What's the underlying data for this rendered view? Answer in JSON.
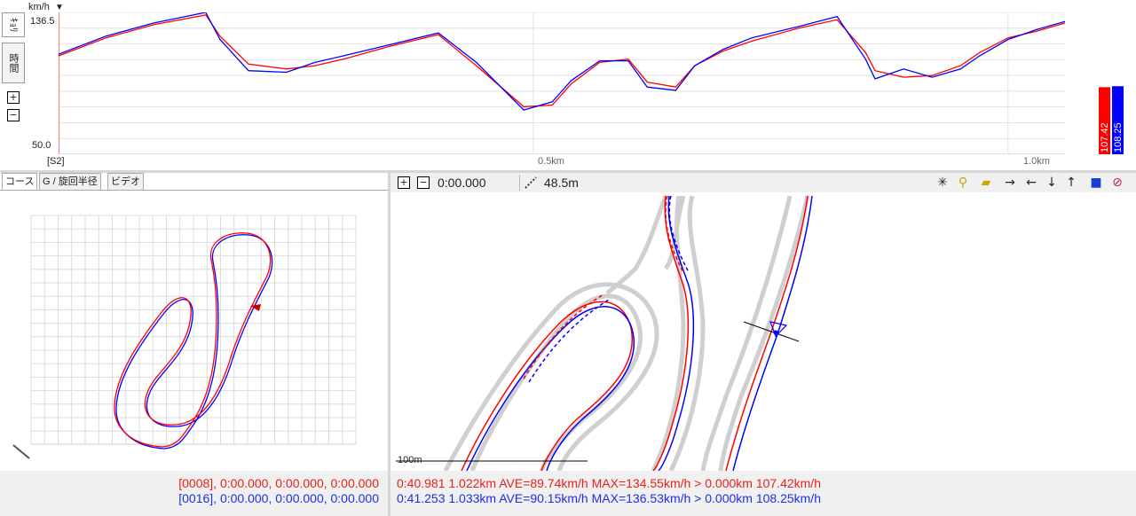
{
  "speed_chart": {
    "unit": "km/h",
    "y_max_label": "136.5",
    "y_min_label": "50.0",
    "start_label": "[S2]",
    "x_tick_labels": [
      "0.5km",
      "1.0km"
    ],
    "tab_labels": [
      "ｷｮﾘ",
      "時間"
    ],
    "zoom_in_symbol": "+",
    "zoom_out_symbol": "−",
    "bars": [
      {
        "label": "107.42",
        "value": 107.42,
        "color": "#ff0000"
      },
      {
        "label": "108.25",
        "value": 108.25,
        "color": "#0000ff"
      }
    ]
  },
  "chart_data": {
    "type": "line",
    "xlabel": "",
    "ylabel": "km/h",
    "x_range": [
      0,
      1.06
    ],
    "ylim": [
      50.0,
      136.5
    ],
    "grid": true,
    "series": [
      {
        "color": "#ff0000",
        "x": [
          0,
          0.05,
          0.1,
          0.155,
          0.17,
          0.2,
          0.24,
          0.27,
          0.3,
          0.35,
          0.4,
          0.44,
          0.49,
          0.52,
          0.54,
          0.57,
          0.6,
          0.62,
          0.65,
          0.67,
          0.7,
          0.73,
          0.78,
          0.82,
          0.85,
          0.86,
          0.89,
          0.92,
          0.95,
          0.97,
          1.0,
          1.03,
          1.06
        ],
        "y": [
          110,
          121,
          129,
          135,
          122,
          105,
          102,
          104,
          108,
          116,
          123,
          104,
          79,
          80,
          93,
          106,
          108,
          94,
          91,
          104,
          113,
          119,
          127,
          132,
          112,
          101,
          97,
          98,
          104,
          112,
          121,
          125,
          130
        ]
      },
      {
        "color": "#0000ff",
        "x": [
          0,
          0.05,
          0.1,
          0.155,
          0.17,
          0.2,
          0.24,
          0.27,
          0.3,
          0.35,
          0.4,
          0.44,
          0.49,
          0.52,
          0.54,
          0.57,
          0.6,
          0.62,
          0.65,
          0.67,
          0.7,
          0.73,
          0.78,
          0.82,
          0.85,
          0.86,
          0.89,
          0.92,
          0.95,
          0.97,
          1.0,
          1.03,
          1.06
        ],
        "y": [
          111,
          122,
          130,
          137,
          120,
          101,
          100,
          106,
          110,
          117,
          124,
          106,
          77,
          82,
          95,
          107,
          107,
          91,
          89,
          104,
          114,
          121,
          128,
          134,
          108,
          96,
          102,
          97,
          102,
          110,
          120,
          126,
          131
        ]
      }
    ]
  },
  "left_panel": {
    "tabs": [
      "コース",
      "G / 旋回半径",
      "ビデオ"
    ],
    "status_lines": [
      {
        "text": "[0008], 0:00.000, 0:00.000, 0:00.000",
        "color": "#e8201c"
      },
      {
        "text": "[0016], 0:00.000, 0:00.000, 0:00.000",
        "color": "#1c2ee8"
      }
    ]
  },
  "right_panel": {
    "toolbar": {
      "time": "0:00.000",
      "distance": "48.5m"
    },
    "scale_label": "100m",
    "status_lines": [
      {
        "text": "0:40.981 1.022km AVE=89.74km/h MAX=134.55km/h > 0.000km 107.42km/h",
        "color": "#e8201c"
      },
      {
        "text": "0:41.253 1.033km AVE=90.15km/h MAX=136.53km/h > 0.000km 108.25km/h",
        "color": "#1c2ee8"
      }
    ]
  },
  "icons": {
    "crosshair": "crosshair-icon",
    "zoom": "zoom-icon",
    "open": "folder-open-icon",
    "right": "arrow-right-icon",
    "left": "arrow-left-icon",
    "down": "arrow-down-icon",
    "up": "arrow-up-icon",
    "save": "save-icon",
    "clip": "paperclip-icon"
  }
}
